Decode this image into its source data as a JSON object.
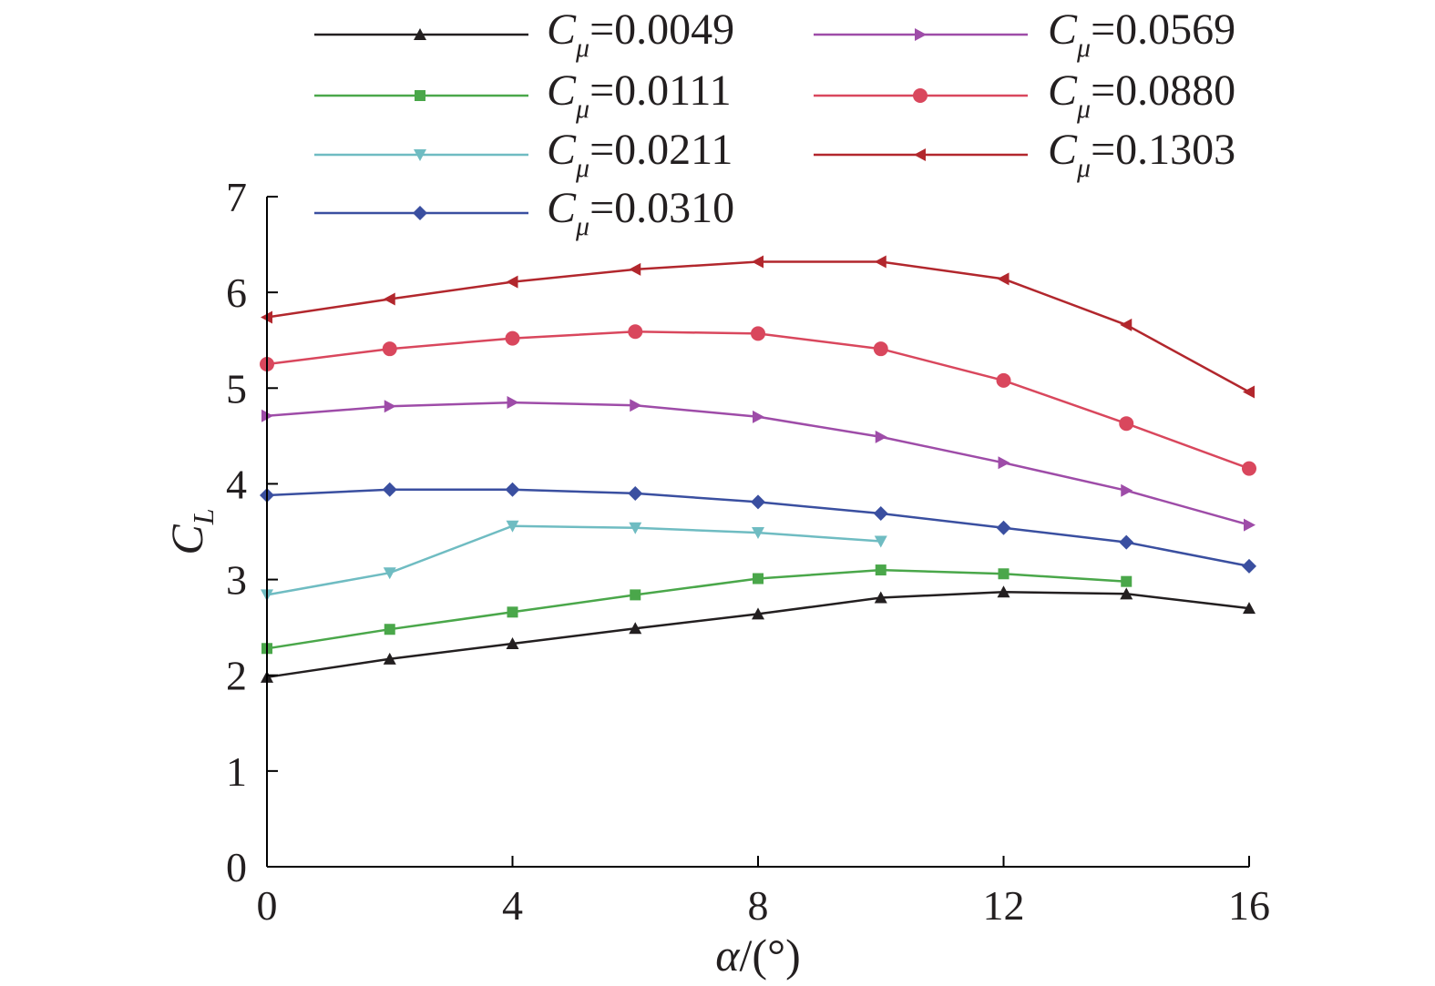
{
  "chart_data": {
    "type": "line",
    "xlabel": "α/(°)",
    "ylabel": "C_L",
    "xlim": [
      0,
      16
    ],
    "ylim": [
      0,
      7
    ],
    "xticks": [
      0,
      4,
      8,
      12,
      16
    ],
    "yticks": [
      0,
      1,
      2,
      3,
      4,
      5,
      6,
      7
    ],
    "legend_position": "top",
    "series": [
      {
        "name": "Cμ=0.0049",
        "symbol": "Cμ",
        "value": "=0.0049",
        "color": "#231f20",
        "marker": "triangle-up",
        "x": [
          0,
          2,
          4,
          6,
          8,
          10,
          12,
          14,
          16
        ],
        "y": [
          1.98,
          2.17,
          2.33,
          2.49,
          2.64,
          2.81,
          2.87,
          2.85,
          2.7
        ]
      },
      {
        "name": "Cμ=0.0111",
        "symbol": "Cμ",
        "value": "=0.0111",
        "color": "#4aa74a",
        "marker": "square",
        "x": [
          0,
          2,
          4,
          6,
          8,
          10,
          12,
          14
        ],
        "y": [
          2.28,
          2.48,
          2.66,
          2.84,
          3.01,
          3.1,
          3.06,
          2.98
        ]
      },
      {
        "name": "Cμ=0.0211",
        "symbol": "Cμ",
        "value": "=0.0211",
        "color": "#6fbcc2",
        "marker": "triangle-down",
        "x": [
          0,
          2,
          4,
          6,
          8,
          10
        ],
        "y": [
          2.84,
          3.07,
          3.56,
          3.54,
          3.49,
          3.4
        ]
      },
      {
        "name": "Cμ=0.0310",
        "symbol": "Cμ",
        "value": "=0.0310",
        "color": "#3a4fa0",
        "marker": "diamond",
        "x": [
          0,
          2,
          4,
          6,
          8,
          10,
          12,
          14,
          16
        ],
        "y": [
          3.88,
          3.94,
          3.94,
          3.9,
          3.81,
          3.69,
          3.54,
          3.39,
          3.14
        ]
      },
      {
        "name": "Cμ=0.0569",
        "symbol": "Cμ",
        "value": "=0.0569",
        "color": "#9e4ca8",
        "marker": "triangle-right",
        "x": [
          0,
          2,
          4,
          6,
          8,
          10,
          12,
          14,
          16
        ],
        "y": [
          4.71,
          4.81,
          4.85,
          4.82,
          4.7,
          4.49,
          4.22,
          3.93,
          3.57
        ]
      },
      {
        "name": "Cμ=0.0880",
        "symbol": "Cμ",
        "value": "=0.0880",
        "color": "#d9475d",
        "marker": "circle",
        "x": [
          0,
          2,
          4,
          6,
          8,
          10,
          12,
          14,
          16
        ],
        "y": [
          5.25,
          5.41,
          5.52,
          5.59,
          5.57,
          5.41,
          5.08,
          4.63,
          4.16
        ]
      },
      {
        "name": "Cμ=0.1303",
        "symbol": "Cμ",
        "value": "=0.1303",
        "color": "#b2272d",
        "marker": "triangle-left",
        "x": [
          0,
          2,
          4,
          6,
          8,
          10,
          12,
          14,
          16
        ],
        "y": [
          5.74,
          5.93,
          6.11,
          6.24,
          6.32,
          6.32,
          6.14,
          5.66,
          4.96
        ]
      }
    ]
  }
}
